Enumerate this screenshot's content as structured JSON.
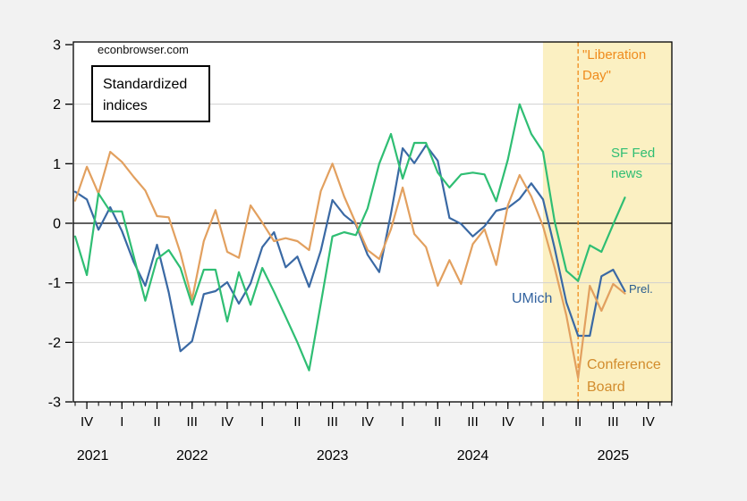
{
  "watermark": "econbrowser.com",
  "note_label": "Standardized\nindices",
  "annotations": {
    "liberation_day": "\"Liberation\nDay\"",
    "sf_fed": "SF Fed\nnews",
    "umich": "UMich",
    "prel": "Prel.",
    "conference_board": "Conference\nBoard"
  },
  "colors": {
    "background": "#f2f2f2",
    "plot_bg": "#ffffff",
    "grid": "#d0d0d0",
    "axis": "#000000",
    "band": "#fbf0c2",
    "vline": "#ef8b1c",
    "umich_line": "#3a69a4",
    "conference_line": "#e2a05f",
    "sffed_line": "#2fbe73",
    "umich_label": "#33639f",
    "prel_label": "#2a5d8f",
    "conference_label": "#d28c2d",
    "liberation_label": "#ef8b1c",
    "sffed_label": "#2fbe73"
  },
  "chart_data": {
    "type": "line",
    "title": "Standardized indices",
    "source_watermark": "econbrowser.com",
    "ylim": [
      -3,
      3
    ],
    "yticks": [
      -3,
      -2,
      -1,
      0,
      1,
      2,
      3
    ],
    "grid": true,
    "x_monthly": [
      "2021-09",
      "2021-10",
      "2021-11",
      "2021-12",
      "2022-01",
      "2022-02",
      "2022-03",
      "2022-04",
      "2022-05",
      "2022-06",
      "2022-07",
      "2022-08",
      "2022-09",
      "2022-10",
      "2022-11",
      "2022-12",
      "2023-01",
      "2023-02",
      "2023-03",
      "2023-04",
      "2023-05",
      "2023-06",
      "2023-07",
      "2023-08",
      "2023-09",
      "2023-10",
      "2023-11",
      "2023-12",
      "2024-01",
      "2024-02",
      "2024-03",
      "2024-04",
      "2024-05",
      "2024-06",
      "2024-07",
      "2024-08",
      "2024-09",
      "2024-10",
      "2024-11",
      "2024-12",
      "2025-01",
      "2025-02",
      "2025-03",
      "2025-04",
      "2025-05",
      "2025-06",
      "2025-07",
      "2025-08"
    ],
    "series": [
      {
        "name": "UMich",
        "color_key": "umich_line",
        "values": [
          0.53,
          0.4,
          -0.11,
          0.27,
          -0.13,
          -0.65,
          -1.05,
          -0.36,
          -1.16,
          -2.15,
          -1.98,
          -1.19,
          -1.14,
          -0.99,
          -1.35,
          -1.01,
          -0.4,
          -0.15,
          -0.74,
          -0.56,
          -1.07,
          -0.46,
          0.39,
          0.14,
          -0.02,
          -0.53,
          -0.82,
          0.16,
          1.26,
          1.01,
          1.31,
          1.05,
          0.09,
          -0.01,
          -0.22,
          -0.05,
          0.21,
          0.26,
          0.41,
          0.67,
          0.4,
          -0.42,
          -1.33,
          -1.89,
          -1.89,
          -0.89,
          -0.78,
          -1.14
        ]
      },
      {
        "name": "Conference Board",
        "color_key": "conference_line",
        "values": [
          0.38,
          0.95,
          0.5,
          1.2,
          1.03,
          0.78,
          0.55,
          0.12,
          0.1,
          -0.5,
          -1.28,
          -0.3,
          0.22,
          -0.48,
          -0.58,
          0.3,
          0.01,
          -0.3,
          -0.25,
          -0.3,
          -0.45,
          0.54,
          1.0,
          0.45,
          0.0,
          -0.45,
          -0.6,
          -0.1,
          0.6,
          -0.18,
          -0.4,
          -1.05,
          -0.62,
          -1.02,
          -0.35,
          -0.1,
          -0.7,
          0.3,
          0.81,
          0.45,
          -0.05,
          -0.75,
          -1.55,
          -2.6,
          -1.05,
          -1.47,
          -1.02,
          -1.18
        ]
      },
      {
        "name": "SF Fed news",
        "color_key": "sffed_line",
        "values": [
          -0.22,
          -0.87,
          0.5,
          0.2,
          0.2,
          -0.55,
          -1.3,
          -0.6,
          -0.45,
          -0.75,
          -1.37,
          -0.78,
          -0.78,
          -1.65,
          -0.82,
          -1.37,
          -0.75,
          -1.15,
          -1.57,
          -2.0,
          -2.47,
          -1.35,
          -0.22,
          -0.15,
          -0.2,
          0.25,
          1.0,
          1.5,
          0.75,
          1.35,
          1.35,
          0.85,
          0.6,
          0.82,
          0.85,
          0.82,
          0.37,
          1.07,
          2.0,
          1.5,
          1.2,
          0.03,
          -0.8,
          -0.97,
          -0.37,
          -0.48,
          -0.02,
          0.43
        ]
      }
    ],
    "quarter_ticks": [
      {
        "m": 1,
        "label": "IV"
      },
      {
        "m": 4,
        "label": "I"
      },
      {
        "m": 7,
        "label": "II"
      },
      {
        "m": 10,
        "label": "III"
      },
      {
        "m": 13,
        "label": "IV"
      },
      {
        "m": 16,
        "label": "I"
      },
      {
        "m": 19,
        "label": "II"
      },
      {
        "m": 22,
        "label": "III"
      },
      {
        "m": 25,
        "label": "IV"
      },
      {
        "m": 28,
        "label": "I"
      },
      {
        "m": 31,
        "label": "II"
      },
      {
        "m": 34,
        "label": "III"
      },
      {
        "m": 37,
        "label": "IV"
      },
      {
        "m": 40,
        "label": "I"
      },
      {
        "m": 43,
        "label": "II"
      },
      {
        "m": 46,
        "label": "III"
      },
      {
        "m": 49,
        "label": "IV"
      }
    ],
    "year_labels": [
      {
        "m": 1.5,
        "label": "2021"
      },
      {
        "m": 10,
        "label": "2022"
      },
      {
        "m": 22,
        "label": "2023"
      },
      {
        "m": 34,
        "label": "2024"
      },
      {
        "m": 46,
        "label": "2025"
      }
    ],
    "shaded_region": {
      "start_m": 40,
      "note": "2025 shaded band"
    },
    "vline_m": 43,
    "vline_label": "\"Liberation Day\""
  }
}
